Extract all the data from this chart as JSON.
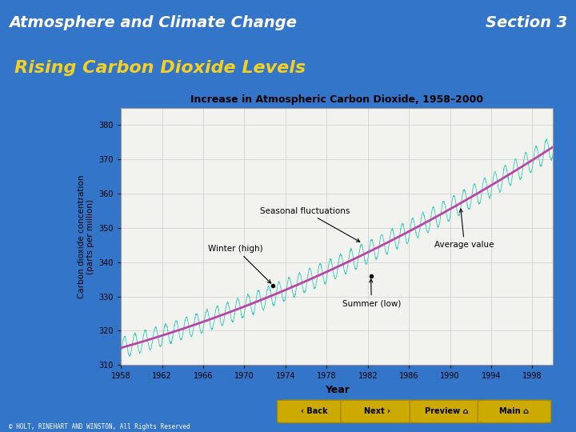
{
  "title": "Atmosphere and Climate Change",
  "section": "Section 3",
  "subtitle": "Rising Carbon Dioxide Levels",
  "chart_title": "Increase in Atmospheric Carbon Dioxide, 1958–2000",
  "xlabel": "Year",
  "ylabel": "Carbon dioxide concentration\n(parts per million)",
  "xlim": [
    1958,
    2000
  ],
  "ylim": [
    310,
    385
  ],
  "yticks": [
    310,
    320,
    330,
    340,
    350,
    360,
    370,
    380
  ],
  "xticks": [
    1958,
    1962,
    1966,
    1970,
    1974,
    1978,
    1982,
    1986,
    1990,
    1994,
    1998
  ],
  "bg_color": "#3375c8",
  "header_bg": "#1a3a6a",
  "chart_bg": "#f2f2ee",
  "chart_border": "#ffffff",
  "avg_color": "#bb44aa",
  "seasonal_color": "#33ccbb",
  "annotation_font_size": 7.5,
  "title_color": "#ffffff",
  "subtitle_color": "#f5d020",
  "copyright": "© HOLT, RINEHART AND WINSTON, All Rights Reserved",
  "btn_labels": [
    "Back",
    "Next",
    "Preview",
    "Main"
  ],
  "btn_color": "#ccaa00",
  "btn_text_color": "#000000"
}
